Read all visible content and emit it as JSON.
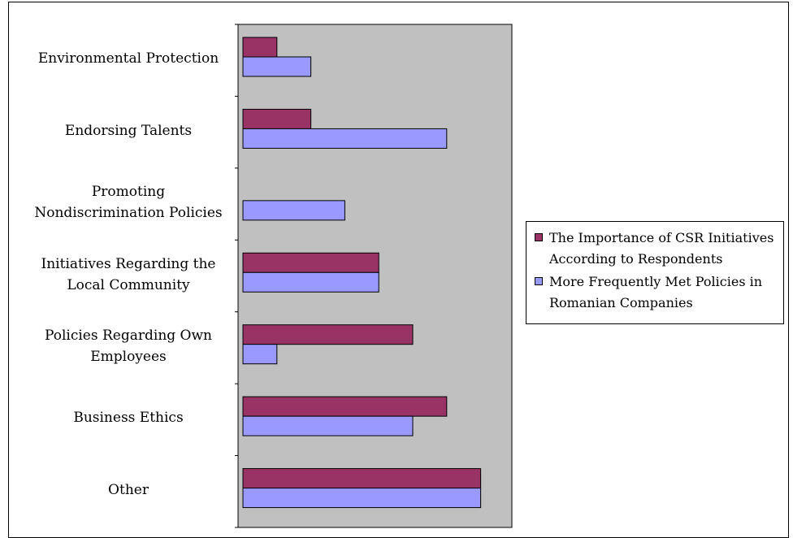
{
  "chart_data": {
    "type": "bar",
    "orientation": "horizontal",
    "categories": [
      [
        "Environmental Protection"
      ],
      [
        "Endorsing Talents"
      ],
      [
        "Promoting",
        "Nondiscrimination Policies"
      ],
      [
        "Initiatives Regarding the",
        "Local Community"
      ],
      [
        "Policies Regarding Own",
        "Employees"
      ],
      [
        "Business Ethics"
      ],
      [
        "Other"
      ]
    ],
    "series": [
      {
        "name": [
          "The Importance of CSR Initiatives",
          "According to Respondents"
        ],
        "color": "#993366",
        "values": [
          1,
          2,
          0,
          4,
          5,
          6,
          7
        ]
      },
      {
        "name": [
          "More Frequently Met Policies in",
          "Romanian Companies"
        ],
        "color": "#9999ff",
        "values": [
          2,
          6,
          3,
          4,
          1,
          5,
          7
        ]
      }
    ],
    "xlim": [
      0,
      8
    ],
    "plot_background": "#c0c0c0",
    "value_axis_visible": false,
    "gridlines": false,
    "legend_position": "right"
  }
}
